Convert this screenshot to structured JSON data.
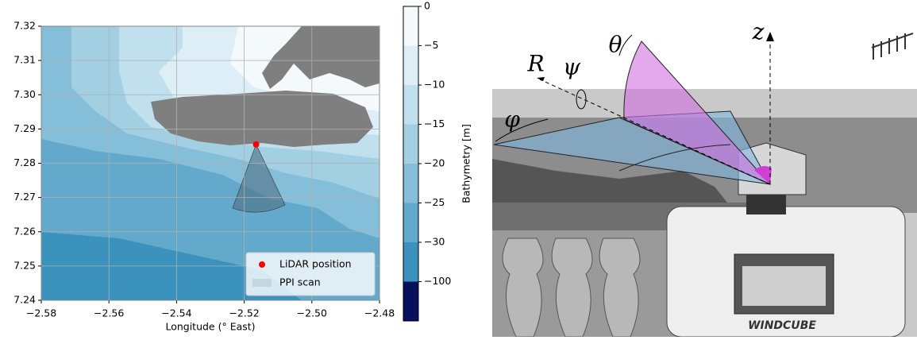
{
  "chart_data": {
    "type": "contour",
    "xlabel": "Longitude (° East)",
    "xlim": [
      -2.58,
      -2.48
    ],
    "ylim": [
      7.24,
      7.32
    ],
    "xticks": [
      {
        "value": -2.58,
        "label": "−2.58"
      },
      {
        "value": -2.56,
        "label": "−2.56"
      },
      {
        "value": -2.54,
        "label": "−2.54"
      },
      {
        "value": -2.52,
        "label": "−2.52"
      },
      {
        "value": -2.5,
        "label": "−2.50"
      },
      {
        "value": -2.48,
        "label": "−2.48"
      }
    ],
    "yticks": [
      7.24,
      7.25,
      7.26,
      7.27,
      7.28,
      7.29,
      {
        "value": 7.3,
        "label": "7.30"
      },
      7.31,
      7.32
    ],
    "grid": true,
    "legend": "lower right",
    "series": [
      {
        "name": "LiDAR position",
        "color": "#ff0000",
        "x": [
          -2.5165
        ],
        "values": [
          7.2855
        ]
      },
      {
        "name": "PPI scan",
        "color": "#4f6f84"
      }
    ],
    "colorbar": {
      "label": "Bathymetry [m]",
      "ticks": [
        0,
        {
          "value": -5,
          "label": "−5"
        },
        {
          "value": -10,
          "label": "−10"
        },
        {
          "value": -15,
          "label": "−15"
        },
        {
          "value": -20,
          "label": "−20"
        },
        {
          "value": -25,
          "label": "−25"
        },
        {
          "value": -30,
          "label": "−30"
        },
        {
          "value": -100,
          "label": "−100"
        }
      ],
      "colors": [
        "#f4f9fc",
        "#ddeef6",
        "#c1e0ee",
        "#a3cfe3",
        "#84bed9",
        "#62a9cb",
        "#3b93bd",
        "#08105e"
      ]
    }
  },
  "photo": {
    "labels": {
      "R": "R",
      "psi": "ψ",
      "theta": "θ",
      "phi": "φ",
      "z": "z"
    },
    "device_text": "WINDCUBE"
  }
}
